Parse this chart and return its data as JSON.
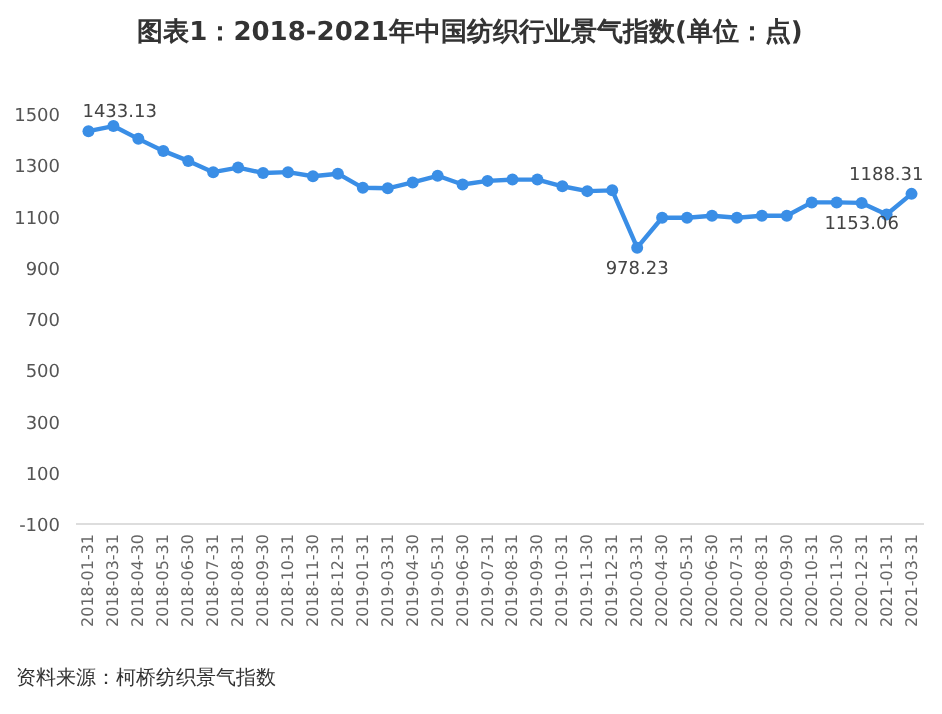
{
  "chart_data": {
    "type": "line",
    "title": "图表1：2018-2021年中国纺织行业景气指数(单位：点)",
    "categories": [
      "2018-01-31",
      "2018-03-31",
      "2018-04-30",
      "2018-05-31",
      "2018-06-30",
      "2018-07-31",
      "2018-08-31",
      "2018-09-30",
      "2018-10-31",
      "2018-11-30",
      "2018-12-31",
      "2019-01-31",
      "2019-03-31",
      "2019-04-30",
      "2019-05-31",
      "2019-06-30",
      "2019-07-31",
      "2019-08-31",
      "2019-09-30",
      "2019-10-31",
      "2019-11-30",
      "2019-12-31",
      "2020-03-31",
      "2020-04-30",
      "2020-05-31",
      "2020-06-30",
      "2020-07-31",
      "2020-08-31",
      "2020-09-30",
      "2020-10-31",
      "2020-11-30",
      "2020-12-31",
      "2021-01-31",
      "2021-03-31"
    ],
    "series": [
      {
        "color": "#3a8ee6",
        "values": [
          1433.13,
          1453,
          1403,
          1356,
          1317,
          1273,
          1291,
          1270,
          1273,
          1257,
          1267,
          1212,
          1210,
          1233,
          1259,
          1225,
          1239,
          1244,
          1244,
          1218,
          1199,
          1202,
          978.23,
          1095,
          1095,
          1103,
          1095,
          1103,
          1103,
          1155,
          1155,
          1153.06,
          1108,
          1188.31
        ],
        "value_labels": [
          "1433.13",
          null,
          null,
          null,
          null,
          null,
          null,
          null,
          null,
          null,
          null,
          null,
          null,
          null,
          null,
          null,
          null,
          null,
          null,
          null,
          null,
          null,
          "978.23",
          null,
          null,
          null,
          null,
          null,
          null,
          null,
          null,
          "1153.06",
          null,
          "1188.31"
        ]
      }
    ],
    "ylim": [
      -100,
      1500
    ],
    "yticks": [
      -100,
      100,
      300,
      500,
      700,
      900,
      1100,
      1300,
      1500
    ],
    "marker": "circle",
    "line_style": "solid",
    "annotations": [
      "资料来源：柯桥纺织景气指数"
    ]
  }
}
